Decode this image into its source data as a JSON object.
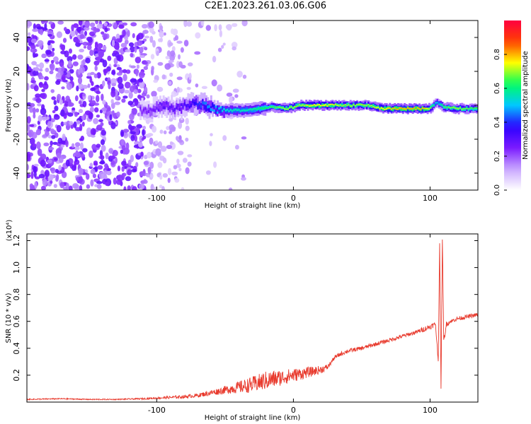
{
  "figure_title": "C2E1.2023.261.03.06.G06",
  "chart_data": [
    {
      "type": "heatmap",
      "title": "C2E1.2023.261.03.06.G06",
      "xlabel": "Height of straight line (km)",
      "ylabel": "Frequency (Hz)",
      "xlim": [
        -195,
        135
      ],
      "ylim": [
        -50,
        50
      ],
      "x_ticks": [
        -100,
        0,
        100
      ],
      "x_tick_labels": [
        "-100",
        "0",
        "100"
      ],
      "y_ticks": [
        -40,
        -20,
        0,
        20,
        40
      ],
      "y_tick_labels": [
        "-40",
        "-20",
        "0",
        "20",
        "40"
      ],
      "colorbar": {
        "label": "Normalized spectral amplitude",
        "range": [
          0,
          1
        ],
        "ticks": [
          0.0,
          0.2,
          0.4,
          0.6,
          0.8
        ],
        "tick_labels": [
          "0.0",
          "0.2",
          "0.4",
          "0.6",
          "0.8"
        ],
        "colormap": [
          "#ffffff",
          "#c9a7ff",
          "#7a1aff",
          "#2a00ff",
          "#00c8ff",
          "#00ff60",
          "#ffff00",
          "#ff4000",
          "#ff0040"
        ]
      },
      "ridge": {
        "x": [
          -105,
          -95,
          -85,
          -75,
          -65,
          -55,
          -45,
          -35,
          -25,
          -15,
          -5,
          5,
          15,
          25,
          35,
          45,
          55,
          65,
          75,
          85,
          95,
          100,
          105,
          110,
          120,
          130
        ],
        "freq_hz": [
          -3,
          0,
          -2,
          1,
          0,
          -3,
          -3,
          -3,
          -2,
          -1,
          -2,
          0,
          0,
          0,
          0,
          0,
          0,
          -2,
          -2,
          -2,
          -2,
          -2,
          2,
          -1,
          -2,
          -2
        ],
        "amplitude": [
          0.25,
          0.3,
          0.3,
          0.35,
          0.45,
          0.5,
          0.55,
          0.55,
          0.6,
          0.65,
          0.7,
          0.7,
          0.75,
          0.75,
          0.7,
          0.7,
          0.7,
          0.75,
          0.8,
          0.8,
          0.8,
          0.7,
          0.5,
          0.65,
          0.7,
          0.65
        ]
      },
      "noise_region": {
        "x_range": [
          -195,
          -35
        ],
        "dense_until": -108,
        "sparse_until": -75
      },
      "grid": false
    },
    {
      "type": "line",
      "title": "",
      "xlabel": "Height of straight line (km)",
      "ylabel": "SNR (10 * v/v)",
      "y_scale_label": "(x10⁴)",
      "xlim": [
        -195,
        135
      ],
      "ylim": [
        0,
        1.25
      ],
      "x_ticks": [
        -100,
        0,
        100
      ],
      "x_tick_labels": [
        "-100",
        "0",
        "100"
      ],
      "y_ticks": [
        0.2,
        0.4,
        0.6,
        0.8,
        1.0,
        1.2
      ],
      "y_tick_labels": [
        "0.2",
        "0.4",
        "0.6",
        "0.8",
        "1.0",
        "1.2"
      ],
      "series": [
        {
          "color": "#e8392c",
          "x": [
            -195,
            -170,
            -150,
            -130,
            -110,
            -100,
            -90,
            -80,
            -70,
            -60,
            -50,
            -40,
            -30,
            -20,
            -10,
            0,
            10,
            20,
            25,
            28,
            30,
            35,
            40,
            50,
            60,
            70,
            80,
            90,
            95,
            100,
            104,
            106,
            107,
            108,
            109,
            110,
            112,
            115,
            120,
            125,
            130,
            135
          ],
          "y": [
            0.02,
            0.025,
            0.02,
            0.02,
            0.025,
            0.03,
            0.035,
            0.04,
            0.05,
            0.07,
            0.09,
            0.11,
            0.13,
            0.16,
            0.18,
            0.2,
            0.22,
            0.24,
            0.26,
            0.3,
            0.33,
            0.36,
            0.38,
            0.4,
            0.43,
            0.46,
            0.49,
            0.52,
            0.54,
            0.56,
            0.58,
            0.3,
            1.2,
            0.08,
            1.22,
            0.45,
            0.58,
            0.6,
            0.62,
            0.63,
            0.64,
            0.65
          ],
          "noise_amplitude": [
            0.004,
            0.004,
            0.004,
            0.004,
            0.006,
            0.008,
            0.01,
            0.012,
            0.015,
            0.02,
            0.03,
            0.045,
            0.06,
            0.07,
            0.06,
            0.05,
            0.04,
            0.03,
            0.02,
            0.015,
            0.015,
            0.015,
            0.015,
            0.015,
            0.015,
            0.015,
            0.015,
            0.015,
            0.02,
            0.02,
            0.02,
            0.02,
            0.02,
            0.02,
            0.02,
            0.02,
            0.02,
            0.015,
            0.015,
            0.015,
            0.015,
            0.015
          ]
        }
      ],
      "grid": false
    }
  ]
}
